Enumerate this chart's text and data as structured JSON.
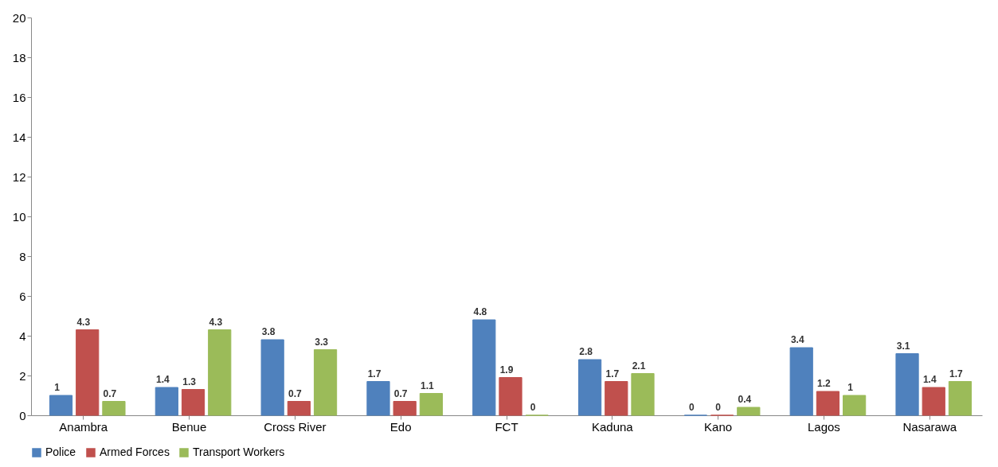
{
  "chart_data": {
    "type": "bar",
    "categories": [
      "Anambra",
      "Benue",
      "Cross River",
      "Edo",
      "FCT",
      "Kaduna",
      "Kano",
      "Lagos",
      "Nasarawa"
    ],
    "series": [
      {
        "name": "Police",
        "color": "#4f81bd",
        "values": [
          1,
          1.4,
          3.8,
          1.7,
          4.8,
          2.8,
          0,
          3.4,
          3.1
        ]
      },
      {
        "name": "Armed Forces",
        "color": "#c0504d",
        "values": [
          4.3,
          1.3,
          0.7,
          0.7,
          1.9,
          1.7,
          0,
          1.2,
          1.4
        ]
      },
      {
        "name": "Transport Workers",
        "color": "#9bbb59",
        "values": [
          0.7,
          4.3,
          3.3,
          1.1,
          0,
          2.1,
          0.4,
          1,
          1.7
        ]
      }
    ],
    "ylim": [
      0,
      20
    ],
    "yticks": [
      0,
      2,
      4,
      6,
      8,
      10,
      12,
      14,
      16,
      18,
      20
    ],
    "grid": false,
    "legend": "bottom",
    "data_labels": true
  }
}
